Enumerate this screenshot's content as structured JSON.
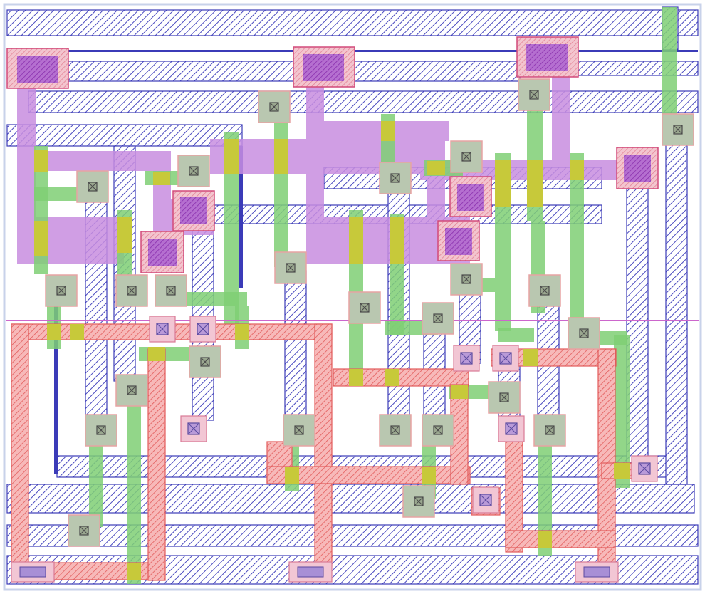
{
  "layout": {
    "title": "",
    "layers": [
      {
        "name": "metal1",
        "color": "#3b3bb8",
        "hatch": true
      },
      {
        "name": "metal2",
        "color": "#a64fc2",
        "hatch": false
      },
      {
        "name": "poly",
        "color": "#55b94a",
        "hatch": false
      },
      {
        "name": "diffusion-p",
        "color": "#e25b5b",
        "hatch": true
      },
      {
        "name": "diffusion-n",
        "color": "#a64fc2",
        "hatch": true
      },
      {
        "name": "gate-overlap",
        "color": "#c7c93a",
        "hatch": false
      },
      {
        "name": "contact",
        "color": "#8a8a8a",
        "hatch": false
      }
    ],
    "well_boundary_color": "#cc66cc",
    "border_color": "#c8d2ea"
  }
}
